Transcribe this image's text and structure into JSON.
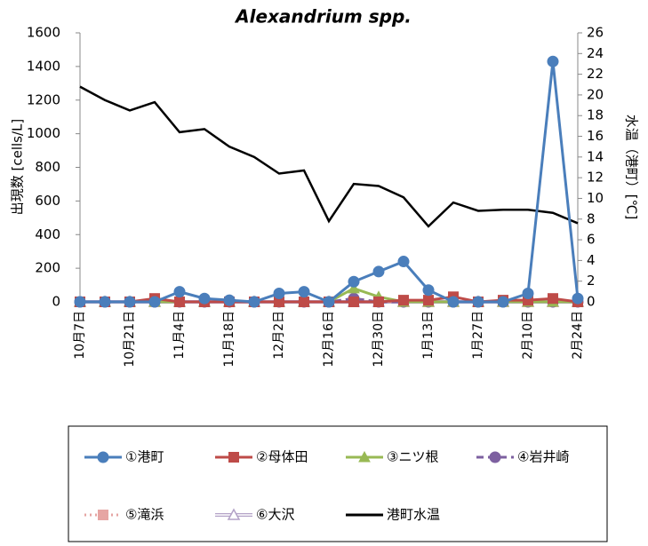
{
  "chart_data": {
    "type": "line",
    "title": "Alexandrium spp.",
    "y_label": "出現数 [cells/L]",
    "y2_label": "水温（港町）[℃]",
    "categories": [
      "10月7日",
      null,
      "10月21日",
      null,
      "11月4日",
      null,
      "11月18日",
      null,
      "12月2日",
      null,
      "12月16日",
      null,
      "12月30日",
      null,
      "1月13日",
      null,
      "1月27日",
      null,
      "2月10日",
      null,
      "2月24日"
    ],
    "ylim": [
      0,
      1600
    ],
    "yticks": [
      0,
      200,
      400,
      600,
      800,
      1000,
      1200,
      1400,
      1600
    ],
    "y2lim": [
      0,
      26
    ],
    "y2ticks": [
      0,
      2,
      4,
      6,
      8,
      10,
      12,
      14,
      16,
      18,
      20,
      22,
      24,
      26
    ],
    "series": [
      {
        "name": "①港町",
        "color": "#4a7ebb",
        "marker": "circle",
        "dash": "solid",
        "values": [
          0,
          0,
          0,
          0,
          60,
          20,
          10,
          0,
          50,
          60,
          0,
          120,
          180,
          240,
          70,
          0,
          0,
          0,
          50,
          1430,
          20
        ]
      },
      {
        "name": "②母体田",
        "color": "#be4b48",
        "marker": "square",
        "dash": "solid",
        "values": [
          0,
          0,
          0,
          20,
          0,
          0,
          0,
          0,
          0,
          0,
          0,
          0,
          0,
          10,
          10,
          30,
          0,
          10,
          10,
          20,
          0
        ]
      },
      {
        "name": "③ニツ根",
        "color": "#98b954",
        "marker": "triangle",
        "dash": "solid",
        "values": [
          0,
          0,
          0,
          0,
          0,
          0,
          0,
          0,
          0,
          0,
          0,
          80,
          30,
          0,
          0,
          0,
          0,
          0,
          0,
          0,
          0
        ]
      },
      {
        "name": "④岩井崎",
        "color": "#7d60a0",
        "marker": "circle",
        "dash": "dashed",
        "values": [
          0,
          0,
          0,
          0,
          0,
          0,
          0,
          0,
          0,
          0,
          0,
          20,
          0,
          0,
          0,
          0,
          0,
          0,
          0,
          0,
          0
        ]
      },
      {
        "name": "⑤滝浜",
        "color": "#e6a5a3",
        "marker": "square",
        "dash": "dotted",
        "values": [
          0,
          0,
          0,
          0,
          0,
          0,
          0,
          0,
          0,
          0,
          0,
          0,
          0,
          0,
          0,
          0,
          0,
          0,
          0,
          0,
          0
        ]
      },
      {
        "name": "⑥大沢",
        "color": "#b3a2c7",
        "marker": "triangle-open",
        "dash": "double",
        "values": [
          0,
          0,
          0,
          0,
          0,
          0,
          0,
          0,
          0,
          0,
          0,
          0,
          0,
          0,
          0,
          0,
          0,
          0,
          0,
          0,
          0
        ]
      },
      {
        "name": "港町水温",
        "color": "#000000",
        "marker": "none",
        "dash": "solid",
        "axis": "y2",
        "values": [
          20.8,
          19.5,
          18.5,
          19.3,
          16.4,
          16.7,
          15.0,
          14.0,
          12.4,
          12.7,
          7.8,
          11.4,
          11.2,
          10.1,
          7.3,
          9.6,
          8.8,
          8.9,
          8.9,
          8.6,
          7.6
        ]
      }
    ]
  }
}
